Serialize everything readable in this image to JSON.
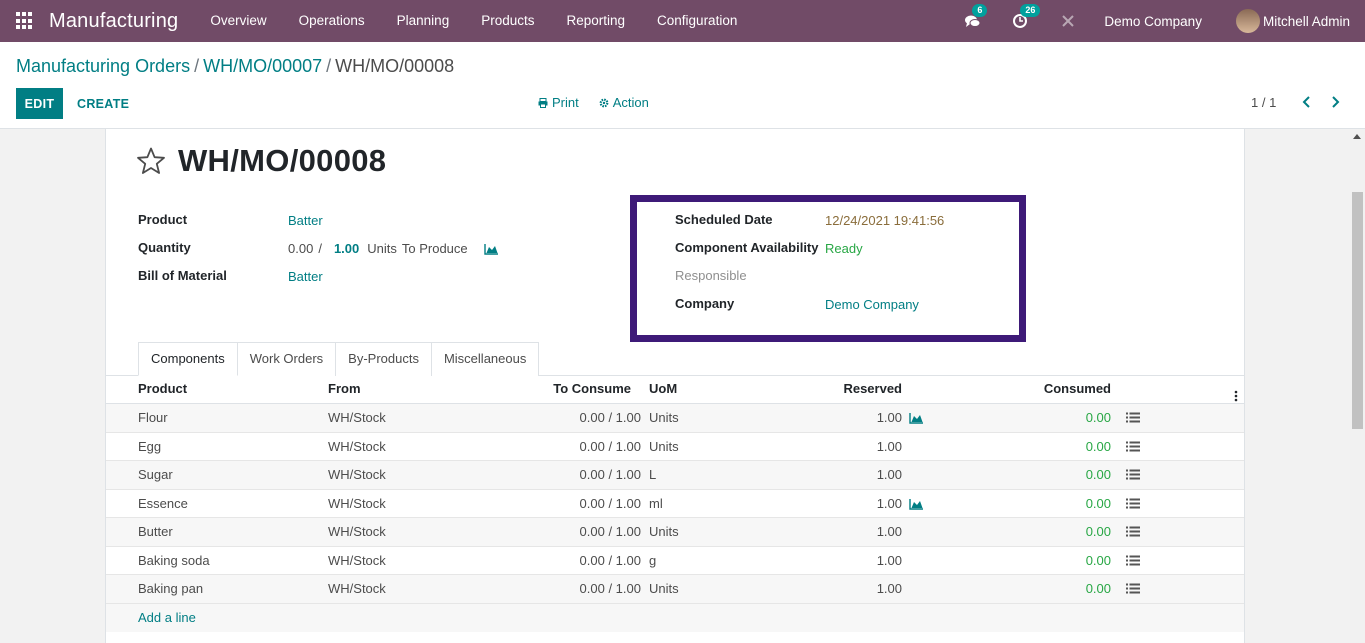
{
  "navbar": {
    "app_title": "Manufacturing",
    "menu": [
      "Overview",
      "Operations",
      "Planning",
      "Products",
      "Reporting",
      "Configuration"
    ],
    "messages_count": "6",
    "activities_count": "26",
    "company": "Demo Company",
    "user": "Mitchell Admin"
  },
  "breadcrumb": {
    "root": "Manufacturing Orders",
    "parent": "WH/MO/00007",
    "current": "WH/MO/00008",
    "separator": "/"
  },
  "toolbar": {
    "edit_label": "EDIT",
    "create_label": "CREATE",
    "print_label": "Print",
    "action_label": "Action",
    "pager": "1 / 1"
  },
  "record": {
    "name": "WH/MO/00008",
    "product_label": "Product",
    "product": "Batter",
    "quantity_label": "Quantity",
    "qty_produced": "0.00",
    "qty_sep": "/",
    "qty_total": "1.00",
    "qty_unit": "Units",
    "to_produce": "To Produce",
    "bom_label": "Bill of Material",
    "bom": "Batter",
    "scheduled_label": "Scheduled Date",
    "scheduled": "12/24/2021 19:41:56",
    "availability_label": "Component Availability",
    "availability": "Ready",
    "responsible_label": "Responsible",
    "company_label": "Company",
    "company": "Demo Company"
  },
  "tabs": [
    "Components",
    "Work Orders",
    "By-Products",
    "Miscellaneous"
  ],
  "table": {
    "headers": {
      "product": "Product",
      "from": "From",
      "to_consume": "To Consume",
      "uom": "UoM",
      "reserved": "Reserved",
      "consumed": "Consumed"
    },
    "rows": [
      {
        "product": "Flour",
        "from": "WH/Stock",
        "to_consume": "0.00 / 1.00",
        "uom": "Units",
        "reserved": "1.00",
        "forecast": true,
        "consumed": "0.00"
      },
      {
        "product": "Egg",
        "from": "WH/Stock",
        "to_consume": "0.00 / 1.00",
        "uom": "Units",
        "reserved": "1.00",
        "forecast": false,
        "consumed": "0.00"
      },
      {
        "product": "Sugar",
        "from": "WH/Stock",
        "to_consume": "0.00 / 1.00",
        "uom": "L",
        "reserved": "1.00",
        "forecast": false,
        "consumed": "0.00"
      },
      {
        "product": "Essence",
        "from": "WH/Stock",
        "to_consume": "0.00 / 1.00",
        "uom": "ml",
        "reserved": "1.00",
        "forecast": true,
        "consumed": "0.00"
      },
      {
        "product": "Butter",
        "from": "WH/Stock",
        "to_consume": "0.00 / 1.00",
        "uom": "Units",
        "reserved": "1.00",
        "forecast": false,
        "consumed": "0.00"
      },
      {
        "product": "Baking soda",
        "from": "WH/Stock",
        "to_consume": "0.00 / 1.00",
        "uom": "g",
        "reserved": "1.00",
        "forecast": false,
        "consumed": "0.00"
      },
      {
        "product": "Baking pan",
        "from": "WH/Stock",
        "to_consume": "0.00 / 1.00",
        "uom": "Units",
        "reserved": "1.00",
        "forecast": false,
        "consumed": "0.00"
      }
    ],
    "add_line": "Add a line"
  },
  "colors": {
    "navbar": "#714b67",
    "accent": "#017e84",
    "highlight_box": "#3e1a78",
    "consumed": "#28a745",
    "scheduled_date": "#8a6d3b"
  }
}
